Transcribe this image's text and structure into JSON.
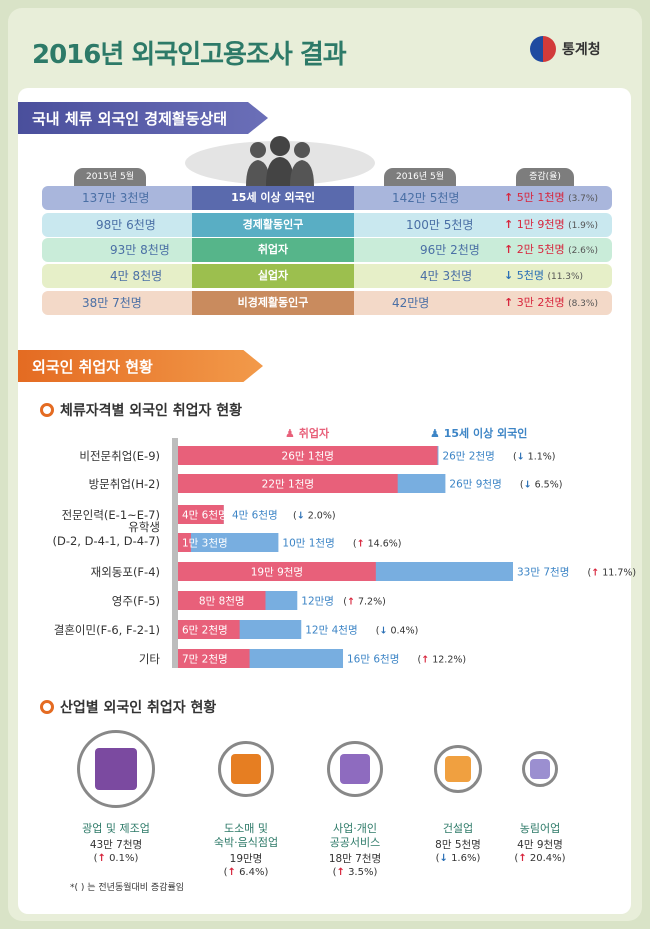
{
  "header": {
    "title_year": "2016년",
    "title_rest": "외국인고용조사 결과",
    "logo_text": "통계청"
  },
  "section1": {
    "heading": "국내 체류 외국인 경제활동상태",
    "col_2015": "2015년 5월",
    "col_2016": "2016년 5월",
    "col_change": "증감(율)",
    "rows": [
      {
        "y2015": "137만 3천명",
        "label": "15세 이상 외국인",
        "y2016": "142만 5천명",
        "dir": "up",
        "change": "5만 1천명",
        "pct": "(3.7%)",
        "color": "#a9b6dc",
        "mid": "#5a6aad"
      },
      {
        "y2015": "98만 6천명",
        "label": "경제활동인구",
        "y2016": "100만 5천명",
        "dir": "up",
        "change": "1만 9천명",
        "pct": "(1.9%)",
        "color": "#c9e8ef",
        "mid": "#59aec4"
      },
      {
        "y2015": "93만 8천명",
        "label": "취업자",
        "y2016": "96만 2천명",
        "dir": "up",
        "change": "2만 5천명",
        "pct": "(2.6%)",
        "color": "#c9ecd9",
        "mid": "#56b58a"
      },
      {
        "y2015": "4만 8천명",
        "label": "실업자",
        "y2016": "4만 3천명",
        "dir": "down",
        "change": "5천명",
        "pct": "(11.3%)",
        "color": "#e6efc8",
        "mid": "#9cbf4e"
      },
      {
        "y2015": "38만 7천명",
        "label": "비경제활동인구",
        "y2016": "42만명",
        "dir": "up",
        "change": "3만 2천명",
        "pct": "(8.3%)",
        "color": "#f3d9c8",
        "mid": "#c98b5e"
      }
    ]
  },
  "section2": {
    "heading": "외국인 취업자 현황",
    "sub1": "체류자격별 외국인 취업자 현황",
    "sub2": "산업별 외국인 취업자 현황",
    "legend_employed": "취업자",
    "legend_total": "15세 이상 외국인",
    "up_arrow": "↑",
    "down_arrow": "↓"
  },
  "chart_data": {
    "type": "bar",
    "categories": [
      "비전문취업(E-9)",
      "방문취업(H-2)",
      "전문인력(E-1~E-7)",
      "유학생\n(D-2, D-4-1, D-4-7)",
      "재외동포(F-4)",
      "영주(F-5)",
      "결혼이민(F-6, F-2-1)",
      "기타"
    ],
    "series": [
      {
        "name": "취업자",
        "values": [
          26.1,
          22.1,
          4.6,
          1.3,
          19.9,
          8.8,
          6.2,
          7.2
        ],
        "labels": [
          "26만 1천명",
          "22만 1천명",
          "4만 6천명",
          "1만 3천명",
          "19만 9천명",
          "8만 8천명",
          "6만 2천명",
          "7만 2천명"
        ],
        "color": "#e8607a"
      },
      {
        "name": "15세 이상 외국인",
        "values": [
          26.2,
          26.9,
          4.6,
          10.1,
          33.7,
          12.0,
          12.4,
          16.6
        ],
        "labels": [
          "26만 2천명",
          "26만 9천명",
          "4만 6천명",
          "10만 1천명",
          "33만 7천명",
          "12만명",
          "12만 4천명",
          "16만 6천명"
        ],
        "color": "#78aee0"
      }
    ],
    "changes": [
      {
        "dir": "down",
        "pct": "1.1%"
      },
      {
        "dir": "down",
        "pct": "6.5%"
      },
      {
        "dir": "down",
        "pct": "2.0%"
      },
      {
        "dir": "up",
        "pct": "14.6%"
      },
      {
        "dir": "up",
        "pct": "11.7%"
      },
      {
        "dir": "up",
        "pct": "7.2%"
      },
      {
        "dir": "down",
        "pct": "0.4%"
      },
      {
        "dir": "up",
        "pct": "12.2%"
      }
    ]
  },
  "industries": [
    {
      "name": "광업 및 제조업",
      "value": "43만 7천명",
      "dir": "up",
      "pct": "0.1%",
      "icon": "gear-factory-icon"
    },
    {
      "name": "도소매 및\n숙박·음식점업",
      "value": "19만명",
      "dir": "up",
      "pct": "6.4%",
      "icon": "store-icon"
    },
    {
      "name": "사업·개인\n공공서비스",
      "value": "18만 7천명",
      "dir": "up",
      "pct": "3.5%",
      "icon": "cleaner-icon"
    },
    {
      "name": "건설업",
      "value": "8만 5천명",
      "dir": "down",
      "pct": "1.6%",
      "icon": "crane-icon"
    },
    {
      "name": "농림어업",
      "value": "4만 9천명",
      "dir": "up",
      "pct": "20.4%",
      "icon": "fish-wheat-icon"
    }
  ],
  "footnote": "*(     ) 는 전년동월대비 증감률임"
}
